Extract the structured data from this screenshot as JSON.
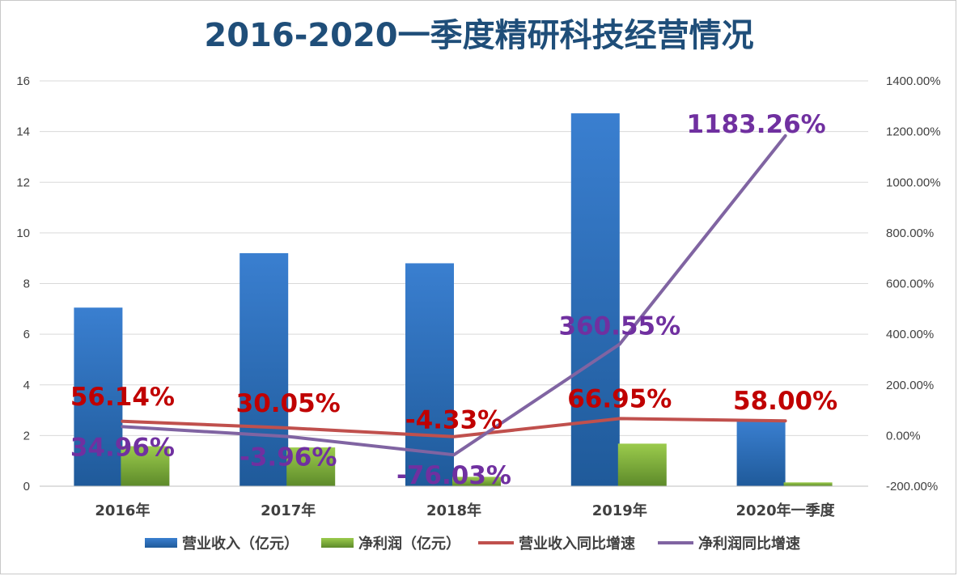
{
  "chart_data": {
    "type": "bar",
    "title": "2016-2020一季度精研科技经营情况",
    "categories": [
      "2016年",
      "2017年",
      "2018年",
      "2019年",
      "2020年一季度"
    ],
    "y_left": {
      "min": 0,
      "max": 16,
      "step": 2,
      "ticks": [
        "0",
        "2",
        "4",
        "6",
        "8",
        "10",
        "12",
        "14",
        "16"
      ]
    },
    "y_right": {
      "min": -200,
      "max": 1400,
      "step": 200,
      "ticks": [
        "-200.00%",
        "0.00%",
        "200.00%",
        "400.00%",
        "600.00%",
        "800.00%",
        "1000.00%",
        "1200.00%",
        "1400.00%"
      ]
    },
    "grid": true,
    "legend_position": "bottom",
    "series": [
      {
        "name": "营业收入（亿元）",
        "kind": "bar",
        "axis": "left",
        "color": "#2e75b6",
        "values": [
          7.05,
          9.2,
          8.8,
          14.72,
          2.6
        ]
      },
      {
        "name": "净利润（亿元）",
        "kind": "bar",
        "axis": "left",
        "color": "#8cbd3f",
        "values": [
          1.58,
          1.53,
          0.37,
          1.68,
          0.15
        ]
      },
      {
        "name": "营业收入同比增速",
        "kind": "line",
        "axis": "right",
        "color": "#c0504d",
        "values": [
          56.14,
          30.05,
          -4.33,
          66.95,
          58.0
        ],
        "labels": [
          "56.14%",
          "30.05%",
          "-4.33%",
          "66.95%",
          "58.00%"
        ]
      },
      {
        "name": "净利润同比增速",
        "kind": "line",
        "axis": "right",
        "color": "#8064a2",
        "values": [
          34.96,
          -3.96,
          -76.03,
          360.55,
          1183.26
        ],
        "labels": [
          "34.96%",
          "-3.96%",
          "-76.03%",
          "360.55%",
          "1183.26%"
        ]
      }
    ]
  }
}
